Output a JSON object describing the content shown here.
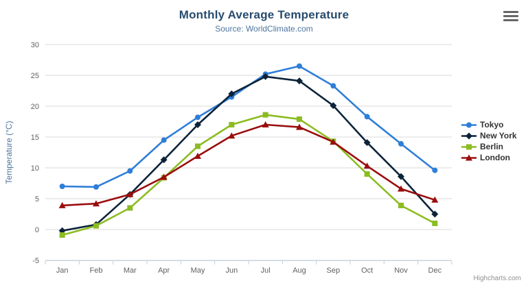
{
  "credit": "Highcharts.com",
  "export_menu": {
    "icon": "hamburger-menu-icon"
  },
  "chart_data": {
    "type": "line",
    "title": "Monthly Average Temperature",
    "subtitle": "Source: WorldClimate.com",
    "categories": [
      "Jan",
      "Feb",
      "Mar",
      "Apr",
      "May",
      "Jun",
      "Jul",
      "Aug",
      "Sep",
      "Oct",
      "Nov",
      "Dec"
    ],
    "xlabel": "",
    "ylabel": "Temperature (°C)",
    "ylim": [
      -5,
      30
    ],
    "ytick_step": 5,
    "grid": "horizontal",
    "legend_position": "right",
    "series": [
      {
        "name": "Tokyo",
        "color": "#2f7ed8",
        "marker": "circle",
        "values": [
          7.0,
          6.9,
          9.5,
          14.5,
          18.2,
          21.5,
          25.2,
          26.5,
          23.3,
          18.3,
          13.9,
          9.6
        ]
      },
      {
        "name": "New York",
        "color": "#0d233a",
        "marker": "diamond",
        "values": [
          -0.2,
          0.8,
          5.7,
          11.3,
          17.0,
          22.0,
          24.8,
          24.1,
          20.1,
          14.1,
          8.6,
          2.5
        ]
      },
      {
        "name": "Berlin",
        "color": "#8bbc21",
        "marker": "square",
        "values": [
          -0.9,
          0.6,
          3.5,
          8.4,
          13.5,
          17.0,
          18.6,
          17.9,
          14.3,
          9.0,
          3.9,
          1.0
        ]
      },
      {
        "name": "London",
        "color": "#9a0d0d",
        "marker": "triangle",
        "values": [
          3.9,
          4.2,
          5.7,
          8.5,
          11.9,
          15.2,
          17.0,
          16.6,
          14.2,
          10.3,
          6.6,
          4.8
        ]
      }
    ],
    "colors": {
      "title": "#274b6d",
      "subtitle": "#4d759e",
      "axis_label": "#606060",
      "axis_title": "#4d759e",
      "gridline": "#d8d8d8",
      "axis_line": "#c0d0e0",
      "legend_text": "#333333",
      "credit": "#909090"
    }
  }
}
